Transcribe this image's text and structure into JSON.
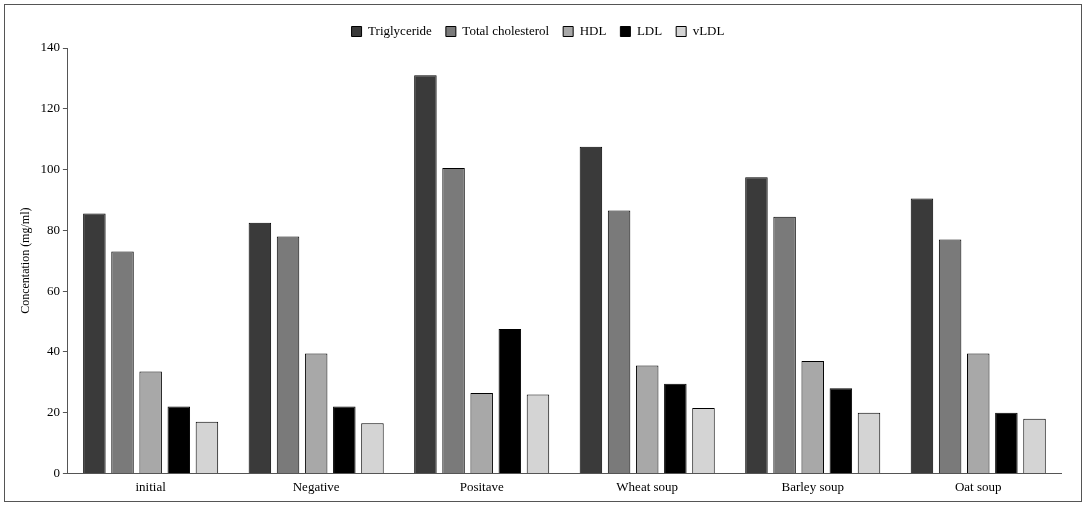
{
  "chart_data": {
    "type": "bar",
    "ylabel": "Concentation (mg/ml)",
    "categories": [
      "initial",
      "Negative",
      "Positave",
      "Wheat soup",
      "Barley soup",
      "Oat soup"
    ],
    "series": [
      {
        "name": "Triglyceride",
        "color": "#3a3a3a",
        "values": [
          85.5,
          82.5,
          131,
          107.5,
          97.5,
          90.5
        ]
      },
      {
        "name": "Total cholesterol",
        "color": "#7a7a7a",
        "values": [
          73,
          78,
          100.5,
          86.5,
          84.5,
          77
        ]
      },
      {
        "name": "HDL",
        "color": "#a8a8a8",
        "values": [
          33.5,
          39.5,
          26.5,
          35.5,
          37,
          39.5
        ]
      },
      {
        "name": "LDL",
        "color": "#000000",
        "values": [
          22,
          22,
          47.5,
          29.5,
          28,
          20
        ]
      },
      {
        "name": "vLDL",
        "color": "#d4d4d4",
        "values": [
          17,
          16.5,
          26,
          21.5,
          20,
          18
        ]
      }
    ],
    "ylim": [
      0,
      140
    ],
    "yticks": [
      0,
      20,
      40,
      60,
      80,
      100,
      120,
      140
    ],
    "grid": false,
    "legend": "top"
  }
}
